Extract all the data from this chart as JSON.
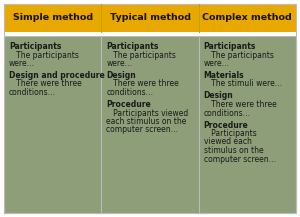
{
  "header_bg": "#E8A800",
  "cell_bg": "#8E9E78",
  "outer_bg": "#FFFFFF",
  "border_color": "#BBBBBB",
  "header_text_color": "#1A1200",
  "cell_text_color": "#1A1A1A",
  "columns": [
    "Simple method",
    "Typical method",
    "Complex method"
  ],
  "col1_content": [
    [
      true,
      "Participants"
    ],
    [
      false,
      "   The participants\nwere…"
    ],
    [
      false,
      ""
    ],
    [
      true,
      "Design and procedure"
    ],
    [
      false,
      "   There were three\nconditions…"
    ]
  ],
  "col2_content": [
    [
      true,
      "Participants"
    ],
    [
      false,
      "   The participants\nwere…"
    ],
    [
      false,
      ""
    ],
    [
      true,
      "Design"
    ],
    [
      false,
      "   There were three\nconditions…"
    ],
    [
      false,
      ""
    ],
    [
      true,
      "Procedure"
    ],
    [
      false,
      "   Participants viewed\neach stimulus on the\ncomputer screen…"
    ]
  ],
  "col3_content": [
    [
      true,
      "Participants"
    ],
    [
      false,
      "   The participants\nwere…"
    ],
    [
      false,
      ""
    ],
    [
      true,
      "Materials"
    ],
    [
      false,
      "   The stimuli were…"
    ],
    [
      false,
      ""
    ],
    [
      true,
      "Design"
    ],
    [
      false,
      "   There were three\nconditions…"
    ],
    [
      false,
      ""
    ],
    [
      true,
      "Procedure"
    ],
    [
      false,
      "   Participants\nviewed each\nstimulus on the\ncomputer screen…"
    ]
  ],
  "header_fontsize": 6.8,
  "cell_fontsize": 5.5,
  "fig_width": 3.0,
  "fig_height": 2.17,
  "dpi": 100
}
